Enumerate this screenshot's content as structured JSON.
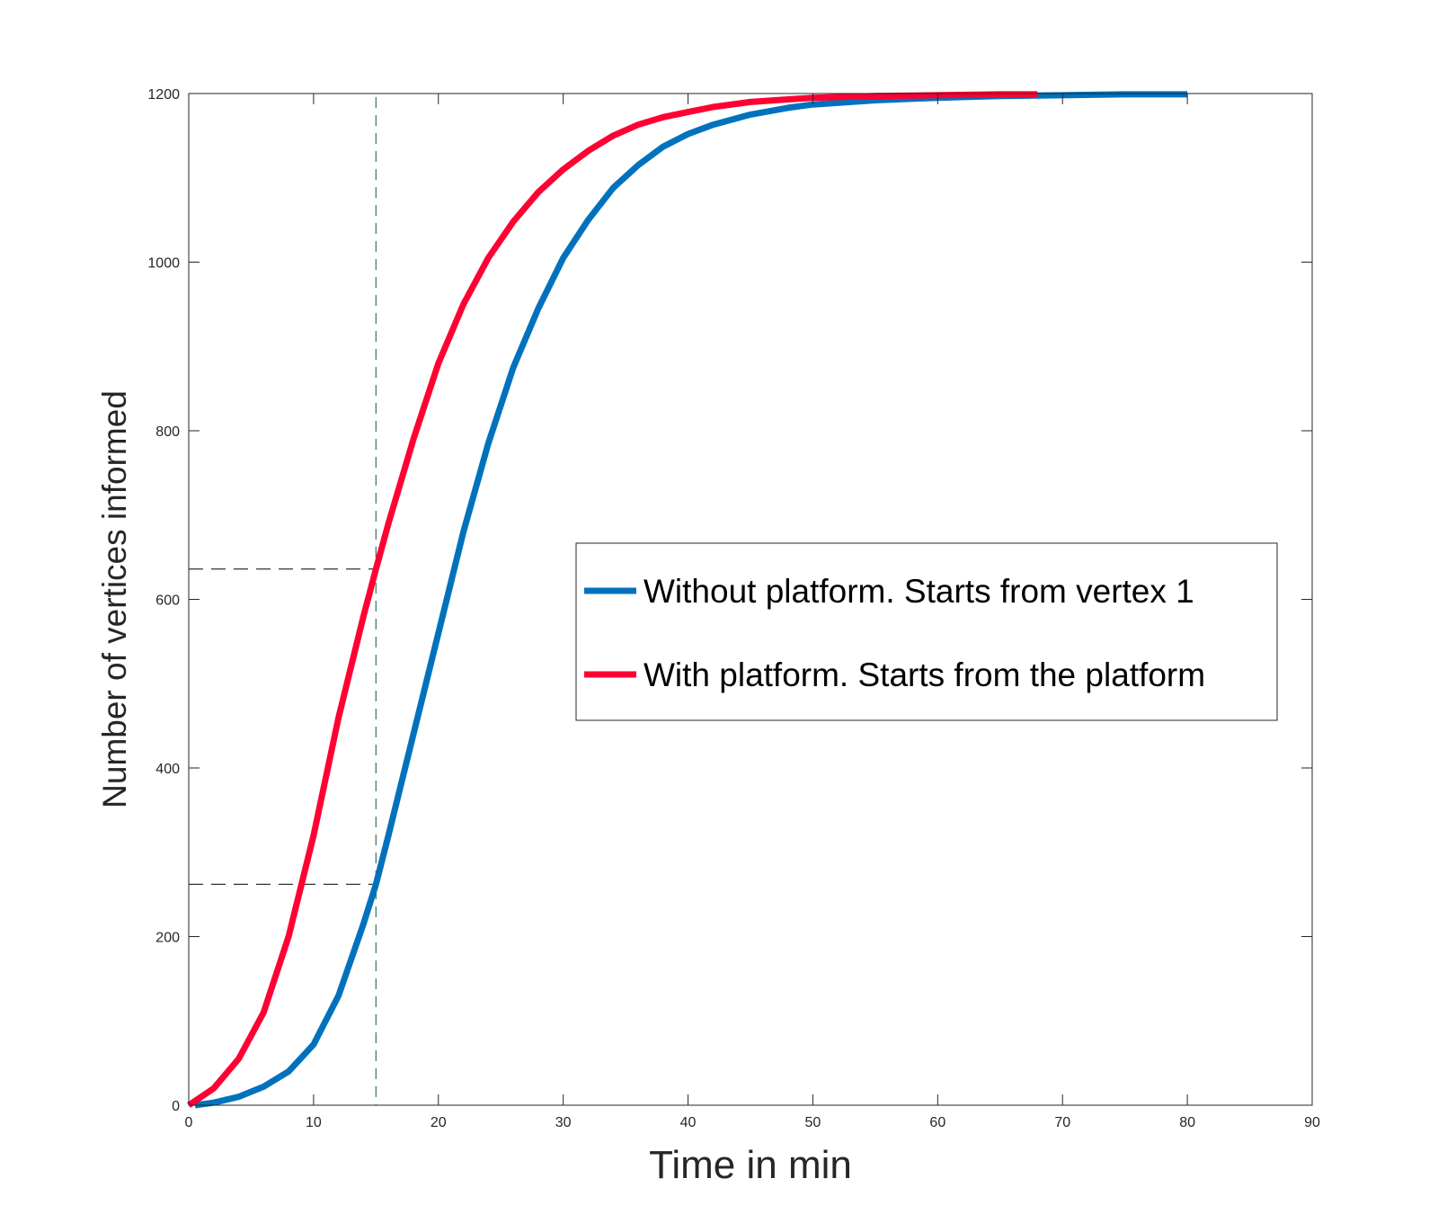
{
  "chart_data": {
    "type": "line",
    "title": "",
    "xlabel": "Time in min",
    "ylabel": "Number of vertices informed",
    "xlim": [
      0,
      90
    ],
    "ylim": [
      0,
      1200
    ],
    "xticks": [
      0,
      10,
      20,
      30,
      40,
      50,
      60,
      70,
      80,
      90
    ],
    "yticks": [
      0,
      200,
      400,
      600,
      800,
      1000,
      1200
    ],
    "grid": false,
    "legend_position": "center-right",
    "series": [
      {
        "name": "Without platform. Starts from vertex 1",
        "color": "#0072BD",
        "x": [
          0.5,
          2,
          4,
          6,
          8,
          10,
          12,
          14,
          15,
          16,
          18,
          20,
          22,
          24,
          26,
          28,
          30,
          32,
          34,
          36,
          38,
          40,
          42,
          45,
          48,
          50,
          55,
          60,
          65,
          70,
          75,
          80
        ],
        "y": [
          0,
          3,
          10,
          22,
          40,
          72,
          130,
          215,
          262,
          320,
          440,
          560,
          680,
          785,
          875,
          945,
          1005,
          1050,
          1088,
          1115,
          1137,
          1152,
          1163,
          1175,
          1183,
          1187,
          1192,
          1195,
          1197,
          1198,
          1199,
          1199
        ]
      },
      {
        "name": "With platform. Starts from the platform",
        "color": "#FF0033",
        "x": [
          0,
          2,
          4,
          6,
          8,
          10,
          12,
          14,
          15,
          16,
          18,
          20,
          22,
          24,
          26,
          28,
          30,
          32,
          34,
          36,
          38,
          40,
          42,
          45,
          50,
          55,
          60,
          65,
          68
        ],
        "y": [
          0,
          20,
          55,
          110,
          200,
          320,
          460,
          580,
          636,
          690,
          790,
          880,
          950,
          1005,
          1048,
          1083,
          1110,
          1132,
          1150,
          1163,
          1172,
          1178,
          1184,
          1190,
          1195,
          1197,
          1198,
          1199,
          1199
        ]
      }
    ],
    "reference_lines": [
      {
        "type": "vertical",
        "x": 15,
        "color": "#4a7a70"
      },
      {
        "type": "horizontal",
        "y": 636,
        "x_end": 15,
        "color": "#333333"
      },
      {
        "type": "horizontal",
        "y": 262,
        "x_end": 15,
        "color": "#333333"
      }
    ]
  }
}
